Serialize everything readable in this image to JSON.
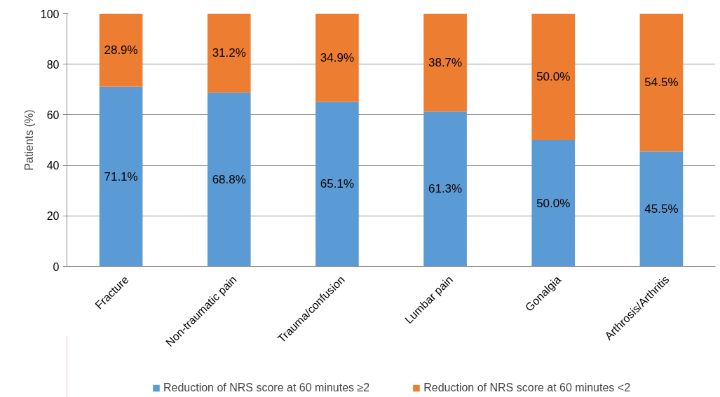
{
  "chart_data": {
    "type": "bar",
    "stacked": true,
    "ylabel": "Patients (%)",
    "categories": [
      "Fracture",
      "Non-traumatic pain",
      "Trauma/confusion",
      "Lumbar pain",
      "Gonalgia",
      "Arthrosis/Arthritis"
    ],
    "series": [
      {
        "name": "Reduction of NRS score at 60 minutes ≥2",
        "color": "#5b9bd5",
        "values": [
          71.1,
          68.8,
          65.1,
          61.3,
          50.0,
          45.5
        ],
        "value_labels": [
          "71.1%",
          "68.8%",
          "65.1%",
          "61.3%",
          "50.0%",
          "45.5%"
        ]
      },
      {
        "name": "Reduction of NRS score at 60 minutes <2",
        "color": "#ed7d31",
        "values": [
          28.9,
          31.2,
          34.9,
          38.7,
          50.0,
          54.5
        ],
        "value_labels": [
          "28.9%",
          "31.2%",
          "34.9%",
          "38.7%",
          "50.0%",
          "54.5%"
        ]
      }
    ],
    "ylim": [
      0,
      100
    ],
    "yticks": [
      0,
      20,
      40,
      60,
      80,
      100
    ],
    "grid": "y",
    "legend": "bottom"
  }
}
